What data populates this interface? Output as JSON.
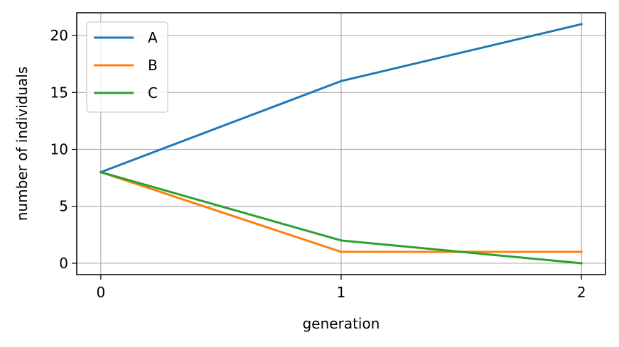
{
  "chart_data": {
    "type": "line",
    "title": "",
    "xlabel": "generation",
    "ylabel": "number of individuals",
    "x": [
      0,
      1,
      2
    ],
    "x_ticks": [
      "0",
      "1",
      "2"
    ],
    "y_ticks": [
      "0",
      "5",
      "10",
      "15",
      "20"
    ],
    "xlim": [
      -0.1,
      2.1
    ],
    "ylim": [
      -1,
      22
    ],
    "grid": true,
    "legend_position": "top-left",
    "series": [
      {
        "name": "A",
        "values": [
          8,
          16,
          21
        ],
        "color": "#1f77b4"
      },
      {
        "name": "B",
        "values": [
          8,
          1,
          1
        ],
        "color": "#ff7f0e"
      },
      {
        "name": "C",
        "values": [
          8,
          2,
          0
        ],
        "color": "#2ca02c"
      }
    ]
  }
}
